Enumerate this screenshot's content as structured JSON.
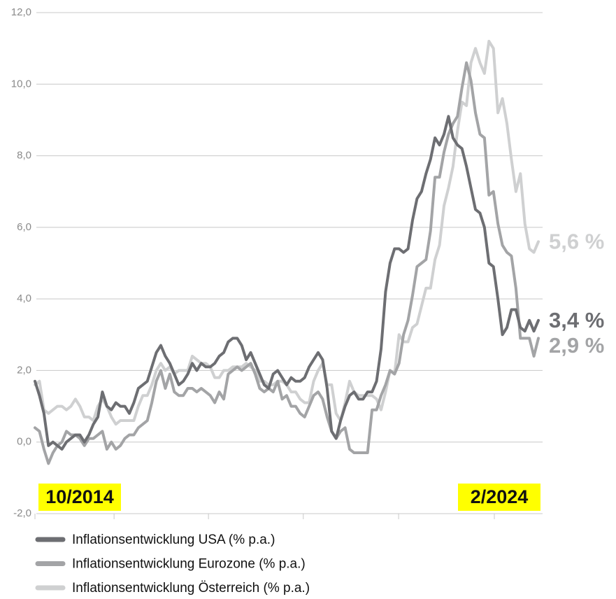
{
  "chart_data": {
    "type": "line",
    "categories": [
      "10/2014",
      null,
      null,
      null,
      null,
      null,
      null,
      null,
      null,
      null,
      null,
      null,
      null,
      null,
      null,
      null,
      null,
      null,
      null,
      null,
      null,
      null,
      null,
      null,
      null,
      null,
      null,
      null,
      null,
      null,
      null,
      null,
      null,
      null,
      null,
      null,
      null,
      null,
      null,
      null,
      null,
      null,
      null,
      null,
      null,
      null,
      null,
      null,
      null,
      null,
      null,
      null,
      null,
      null,
      null,
      null,
      null,
      null,
      null,
      null,
      null,
      null,
      null,
      null,
      null,
      null,
      null,
      null,
      null,
      null,
      null,
      null,
      null,
      null,
      null,
      null,
      null,
      null,
      null,
      null,
      null,
      null,
      null,
      null,
      null,
      null,
      null,
      null,
      null,
      null,
      null,
      null,
      null,
      null,
      null,
      null,
      null,
      null,
      null,
      null,
      null,
      null,
      null,
      null,
      null,
      null,
      null,
      null,
      null,
      null,
      null,
      null,
      "2/2024"
    ],
    "series": [
      {
        "name": "Inflationsentwicklung USA (% p.a.)",
        "color": "#6d6e72",
        "end_label": "3,4 %",
        "values": [
          1.7,
          1.3,
          0.8,
          -0.1,
          0.0,
          -0.1,
          -0.2,
          0.0,
          0.1,
          0.2,
          0.2,
          0.0,
          0.2,
          0.5,
          0.7,
          1.4,
          1.0,
          0.9,
          1.1,
          1.0,
          1.0,
          0.8,
          1.1,
          1.5,
          1.6,
          1.7,
          2.1,
          2.5,
          2.7,
          2.4,
          2.2,
          1.9,
          1.6,
          1.7,
          1.9,
          2.2,
          2.0,
          2.2,
          2.1,
          2.1,
          2.2,
          2.4,
          2.5,
          2.8,
          2.9,
          2.9,
          2.7,
          2.3,
          2.5,
          2.2,
          1.9,
          1.6,
          1.5,
          1.9,
          2.0,
          1.8,
          1.6,
          1.8,
          1.7,
          1.7,
          1.8,
          2.1,
          2.3,
          2.5,
          2.3,
          1.5,
          0.3,
          0.1,
          0.6,
          1.0,
          1.3,
          1.4,
          1.2,
          1.2,
          1.4,
          1.4,
          1.7,
          2.6,
          4.2,
          5.0,
          5.4,
          5.4,
          5.3,
          5.4,
          6.2,
          6.8,
          7.0,
          7.5,
          7.9,
          8.5,
          8.3,
          8.6,
          9.1,
          8.5,
          8.3,
          8.2,
          7.7,
          7.1,
          6.5,
          6.4,
          6.0,
          5.0,
          4.9,
          4.0,
          3.0,
          3.2,
          3.7,
          3.7,
          3.2,
          3.1,
          3.4,
          3.1,
          3.4
        ]
      },
      {
        "name": "Inflationsentwicklung Eurozone (% p.a.)",
        "color": "#a3a4a6",
        "end_label": "2,9 %",
        "values": [
          0.4,
          0.3,
          -0.2,
          -0.6,
          -0.3,
          -0.1,
          0.0,
          0.3,
          0.2,
          0.2,
          0.1,
          -0.1,
          0.1,
          0.1,
          0.2,
          0.3,
          -0.2,
          0.0,
          -0.2,
          -0.1,
          0.1,
          0.2,
          0.2,
          0.4,
          0.5,
          0.6,
          1.1,
          1.7,
          2.0,
          1.5,
          1.9,
          1.4,
          1.3,
          1.3,
          1.5,
          1.5,
          1.4,
          1.5,
          1.4,
          1.3,
          1.1,
          1.4,
          1.2,
          1.9,
          2.0,
          2.1,
          2.0,
          2.1,
          2.2,
          1.9,
          1.5,
          1.4,
          1.5,
          1.4,
          1.7,
          1.2,
          1.3,
          1.0,
          1.0,
          0.8,
          0.7,
          1.0,
          1.3,
          1.4,
          1.2,
          0.7,
          0.3,
          0.1,
          0.3,
          0.4,
          -0.2,
          -0.3,
          -0.3,
          -0.3,
          -0.3,
          0.9,
          0.9,
          1.3,
          1.6,
          2.0,
          1.9,
          2.2,
          3.0,
          3.4,
          4.1,
          4.9,
          5.0,
          5.1,
          5.9,
          7.4,
          7.4,
          8.1,
          8.6,
          8.9,
          9.1,
          9.9,
          10.6,
          10.1,
          9.2,
          8.6,
          8.5,
          6.9,
          7.0,
          6.1,
          5.5,
          5.3,
          5.2,
          4.3,
          2.9,
          2.9,
          2.9,
          2.4,
          2.9
        ]
      },
      {
        "name": "Inflationsentwicklung Österreich (% p.a.)",
        "color": "#cfd0d1",
        "end_label": "5,6 %",
        "values": [
          1.6,
          1.7,
          0.9,
          0.8,
          0.9,
          1.0,
          1.0,
          0.9,
          1.0,
          1.2,
          1.0,
          0.7,
          0.7,
          0.6,
          1.0,
          1.2,
          1.0,
          0.7,
          0.5,
          0.6,
          0.6,
          0.6,
          0.6,
          1.0,
          1.3,
          1.3,
          1.6,
          2.0,
          2.2,
          2.0,
          2.1,
          1.9,
          2.0,
          2.0,
          2.0,
          2.4,
          2.3,
          2.2,
          2.2,
          2.1,
          1.8,
          1.8,
          2.0,
          2.0,
          2.1,
          2.1,
          2.1,
          2.2,
          2.1,
          2.0,
          1.7,
          1.7,
          1.6,
          1.6,
          1.7,
          1.7,
          1.6,
          1.4,
          1.4,
          1.2,
          1.1,
          1.1,
          1.7,
          2.0,
          2.2,
          1.6,
          1.6,
          0.8,
          0.6,
          1.1,
          1.7,
          1.4,
          1.3,
          1.3,
          1.3,
          1.3,
          1.2,
          0.9,
          1.4,
          2.0,
          1.9,
          3.0,
          2.8,
          2.8,
          3.2,
          3.3,
          3.8,
          4.3,
          4.3,
          5.1,
          5.5,
          6.6,
          7.1,
          7.7,
          8.7,
          9.5,
          9.4,
          10.6,
          11.0,
          10.6,
          10.3,
          11.2,
          11.0,
          9.2,
          9.6,
          8.9,
          7.9,
          7.0,
          7.5,
          6.1,
          5.4,
          5.3,
          5.6
        ]
      }
    ],
    "ylim": [
      -2,
      12
    ],
    "yticks": [
      {
        "value": -2,
        "label": "-2,0"
      },
      {
        "value": 0,
        "label": "0,0"
      },
      {
        "value": 2,
        "label": "2,0"
      },
      {
        "value": 4,
        "label": "4,0"
      },
      {
        "value": 6,
        "label": "6,0"
      },
      {
        "value": 8,
        "label": "8,0"
      },
      {
        "value": 10,
        "label": "10,0"
      },
      {
        "value": 12,
        "label": "12,0"
      }
    ],
    "xticks": [
      0,
      17.6,
      38.6,
      59.7,
      80.9,
      102.2
    ],
    "grid": true
  }
}
